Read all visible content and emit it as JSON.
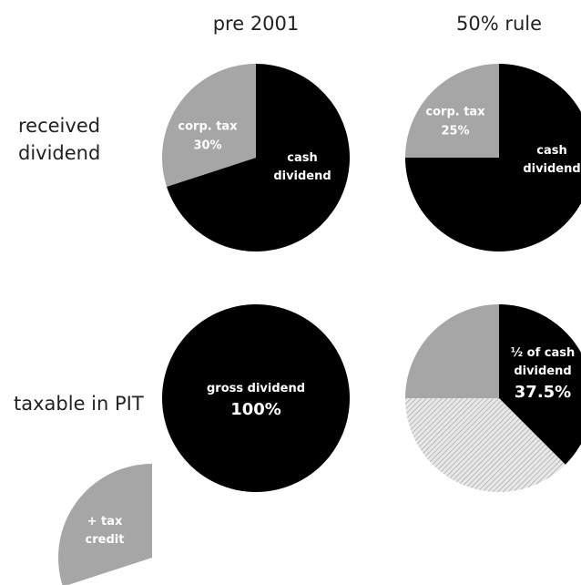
{
  "columns": [
    "pre 2001",
    "50% rule"
  ],
  "rows": [
    "received dividend",
    "taxable in PIT"
  ],
  "pies": [
    {
      "slices": [
        {
          "name": "cash dividend",
          "value": 70,
          "color": "#000000"
        },
        {
          "name": "corp. tax",
          "value": 30,
          "value_label": "30%",
          "color": "#a6a6a6"
        }
      ]
    },
    {
      "slices": [
        {
          "name": "cash dividend",
          "value": 75,
          "color": "#000000"
        },
        {
          "name": "corp. tax",
          "value": 25,
          "value_label": "25%",
          "color": "#a6a6a6"
        }
      ]
    },
    {
      "slices": [
        {
          "name": "gross dividend",
          "value": 100,
          "value_label": "100%",
          "color": "#000000"
        }
      ]
    },
    {
      "slices": [
        {
          "name": "½ of cash dividend",
          "value": 37.5,
          "value_label": "37.5%",
          "color": "#000000"
        },
        {
          "value": 37.5,
          "color": "hatch"
        },
        {
          "value": 25,
          "color": "#a6a6a6"
        }
      ]
    },
    {
      "slices": [
        {
          "name": "+ tax credit",
          "value": 30,
          "color": "#a6a6a6"
        }
      ]
    }
  ]
}
